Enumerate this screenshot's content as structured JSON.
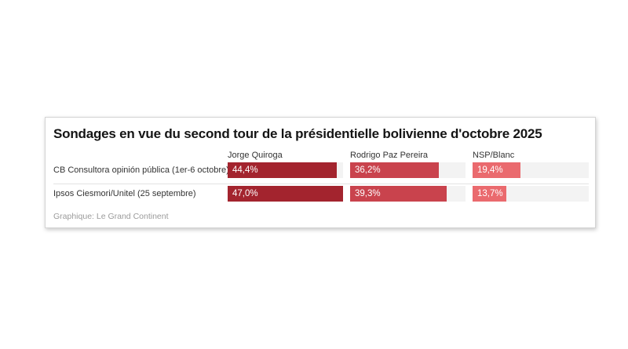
{
  "chart_data": {
    "type": "bar",
    "variant": "split-bars-table",
    "title": "Sondages en vue du second tour de la présidentielle bolivienne d'octobre 2025",
    "categories": [
      "Jorge Quiroga",
      "Rodrigo Paz Pereira",
      "NSP/Blanc"
    ],
    "rows": [
      {
        "label": "CB Consultora opinión pública (1er-6 octobre)",
        "values": [
          44.4,
          36.2,
          19.4
        ],
        "value_labels": [
          "44,4%",
          "36,2%",
          "19,4%"
        ]
      },
      {
        "label": "Ipsos Ciesmori/Unitel (25 septembre)",
        "values": [
          47.0,
          39.3,
          13.7
        ],
        "value_labels": [
          "47,0%",
          "39,3%",
          "13,7%"
        ]
      }
    ],
    "xmax": 47.0,
    "bar_colors": [
      "#a3242e",
      "#c9434d",
      "#ea6a6e"
    ],
    "track_color": "#f3f3f3",
    "grid": false,
    "legend_position": "column-headers",
    "xlabel": "",
    "ylabel": "",
    "source": "Graphique: Le Grand Continent"
  }
}
